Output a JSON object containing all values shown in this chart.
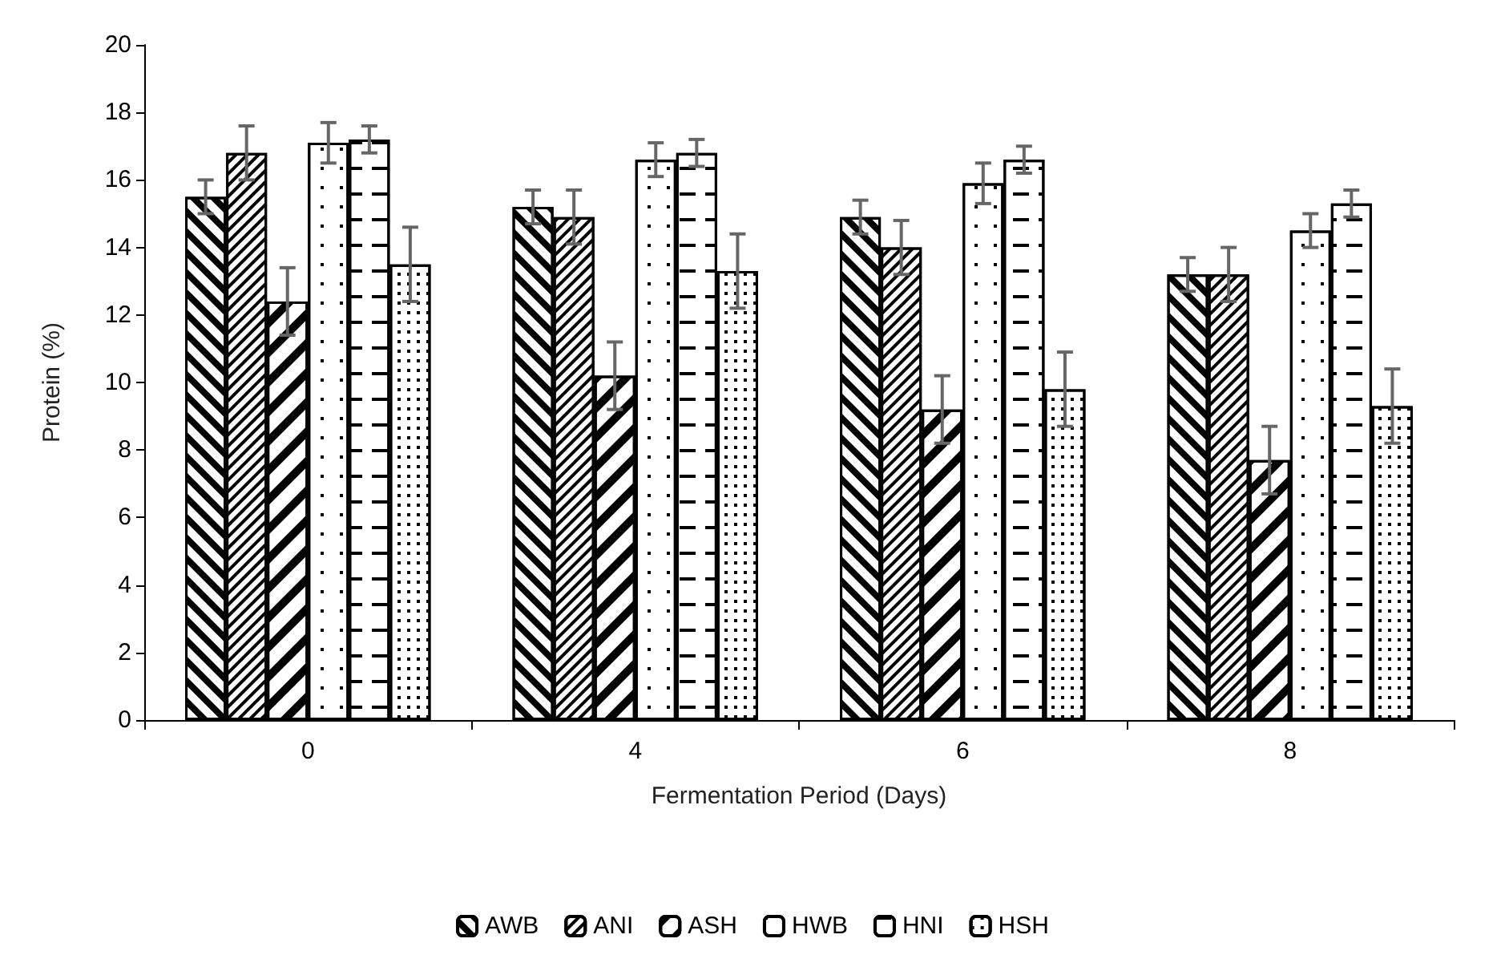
{
  "chart_data": {
    "type": "bar",
    "xlabel": "Fermentation Period (Days)",
    "ylabel": "Protein (%)",
    "categories": [
      "0",
      "4",
      "6",
      "8"
    ],
    "series": [
      {
        "name": "AWB",
        "color": "#ffffff",
        "values": [
          15.5,
          15.2,
          14.9,
          13.2
        ],
        "errors": [
          0.5,
          0.5,
          0.5,
          0.5
        ]
      },
      {
        "name": "ANI",
        "color": "#ffffff",
        "values": [
          16.8,
          14.9,
          14.0,
          13.2
        ],
        "errors": [
          0.8,
          0.8,
          0.8,
          0.8
        ]
      },
      {
        "name": "ASH",
        "color": "#ffffff",
        "values": [
          12.4,
          10.2,
          9.2,
          7.7
        ],
        "errors": [
          1.0,
          1.0,
          1.0,
          1.0
        ]
      },
      {
        "name": "HWB",
        "color": "#ffffff",
        "values": [
          17.1,
          16.6,
          15.9,
          14.5
        ],
        "errors": [
          0.6,
          0.5,
          0.6,
          0.5
        ]
      },
      {
        "name": "HNI",
        "color": "#ffffff",
        "values": [
          17.2,
          16.8,
          16.6,
          15.3
        ],
        "errors": [
          0.4,
          0.4,
          0.4,
          0.4
        ]
      },
      {
        "name": "HSH",
        "color": "#ffffff",
        "values": [
          13.5,
          13.3,
          9.8,
          9.3
        ],
        "errors": [
          1.1,
          1.1,
          1.1,
          1.1
        ]
      }
    ],
    "ylim": [
      0,
      20
    ],
    "yticks": [
      0,
      2,
      4,
      6,
      8,
      10,
      12,
      14,
      16,
      18,
      20
    ],
    "grid": false,
    "legend": "bottom"
  }
}
